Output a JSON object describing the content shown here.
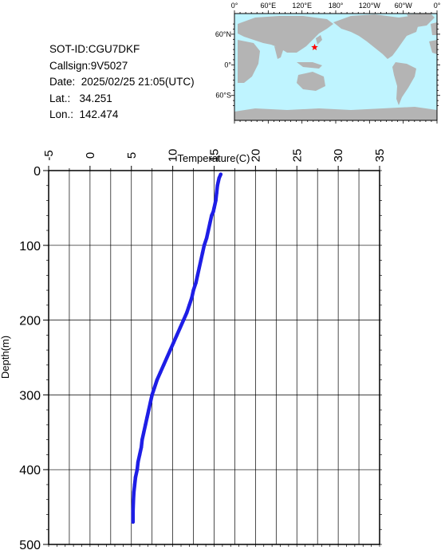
{
  "info": {
    "sot_id": "SOT-ID:CGU7DKF",
    "callsign": "Callsign:9V5027",
    "date": "Date:  2025/02/25 21:05(UTC)",
    "lat": "Lat.:   34.251",
    "lon": "Lon.:  142.474"
  },
  "map": {
    "lon_labels": [
      "0°",
      "60°E",
      "120°E",
      "180°",
      "120°W",
      "60°W",
      "0°"
    ],
    "lat_labels": [
      "60°N",
      "0°",
      "60°S"
    ],
    "marker_lat": 34.251,
    "marker_lon": 142.474,
    "ocean_color": "#bff4ff",
    "land_color": "#b4b4b4",
    "marker_color": "#ff0000",
    "marker_icon": "star-icon"
  },
  "chart_data": {
    "type": "line",
    "xlabel": "Temperature(C)",
    "ylabel": "Depth(m)",
    "xlim": [
      -5,
      35
    ],
    "ylim": [
      0,
      500
    ],
    "y_inverted": true,
    "x_axis_position": "top",
    "grid": true,
    "xticks": [
      "-5",
      "0",
      "5",
      "10",
      "15",
      "20",
      "25",
      "30",
      "35"
    ],
    "yticks": [
      "0",
      "100",
      "200",
      "300",
      "400",
      "500"
    ],
    "line_color": "#1e1ee6",
    "series": [
      {
        "x": [
          15.8,
          15.6,
          15.4,
          15.3,
          15.2,
          15.0,
          14.9,
          14.7,
          14.5,
          14.3,
          14.1,
          13.8,
          13.6,
          13.4,
          13.2,
          13.0,
          12.8,
          12.5,
          12.3,
          12.0,
          11.7,
          11.3,
          10.9,
          10.5,
          10.1,
          9.7,
          9.3,
          8.9,
          8.5,
          8.1,
          7.8,
          7.5,
          7.3,
          7.1,
          6.9,
          6.7,
          6.5,
          6.3,
          6.2,
          6.0,
          5.8,
          5.7,
          5.5,
          5.4,
          5.3,
          5.25,
          5.2,
          5.2
        ],
        "y": [
          5,
          10,
          20,
          30,
          40,
          50,
          55,
          60,
          70,
          80,
          90,
          100,
          110,
          120,
          130,
          140,
          150,
          160,
          170,
          180,
          190,
          200,
          210,
          220,
          230,
          240,
          250,
          260,
          270,
          280,
          290,
          300,
          310,
          320,
          330,
          340,
          350,
          360,
          370,
          380,
          390,
          400,
          410,
          420,
          430,
          440,
          455,
          470
        ]
      }
    ]
  }
}
